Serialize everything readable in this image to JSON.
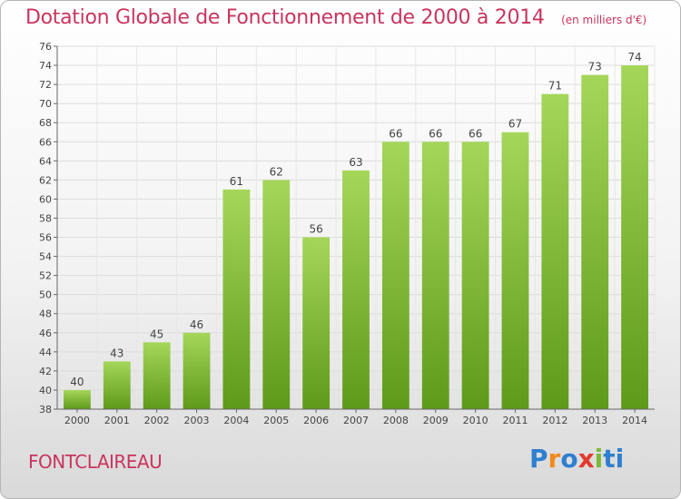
{
  "header": {
    "title": "Dotation Globale de Fonctionnement de 2000 à 2014",
    "subtitle": "(en milliers d'€)"
  },
  "footer": {
    "town": "FONTCLAIREAU",
    "logo": "Proxiti"
  },
  "colors": {
    "title": "#c8355e",
    "bar_top": "#a5d65a",
    "bar_bottom": "#5e9a1a",
    "grid": "#dcdcdc"
  },
  "chart_data": {
    "type": "bar",
    "categories": [
      "2000",
      "2001",
      "2002",
      "2003",
      "2004",
      "2005",
      "2006",
      "2007",
      "2008",
      "2009",
      "2010",
      "2011",
      "2012",
      "2013",
      "2014"
    ],
    "values": [
      40,
      43,
      45,
      46,
      61,
      62,
      56,
      63,
      66,
      66,
      66,
      67,
      71,
      73,
      74
    ],
    "title": "Dotation Globale de Fonctionnement de 2000 à 2014",
    "subtitle": "(en milliers d'€)",
    "xlabel": "",
    "ylabel": "",
    "ylim": [
      38,
      76
    ],
    "yticks": [
      38,
      40,
      42,
      44,
      46,
      48,
      50,
      52,
      54,
      56,
      58,
      60,
      62,
      64,
      66,
      68,
      70,
      72,
      74,
      76
    ],
    "grid": true,
    "legend": "none",
    "data_labels": true
  }
}
